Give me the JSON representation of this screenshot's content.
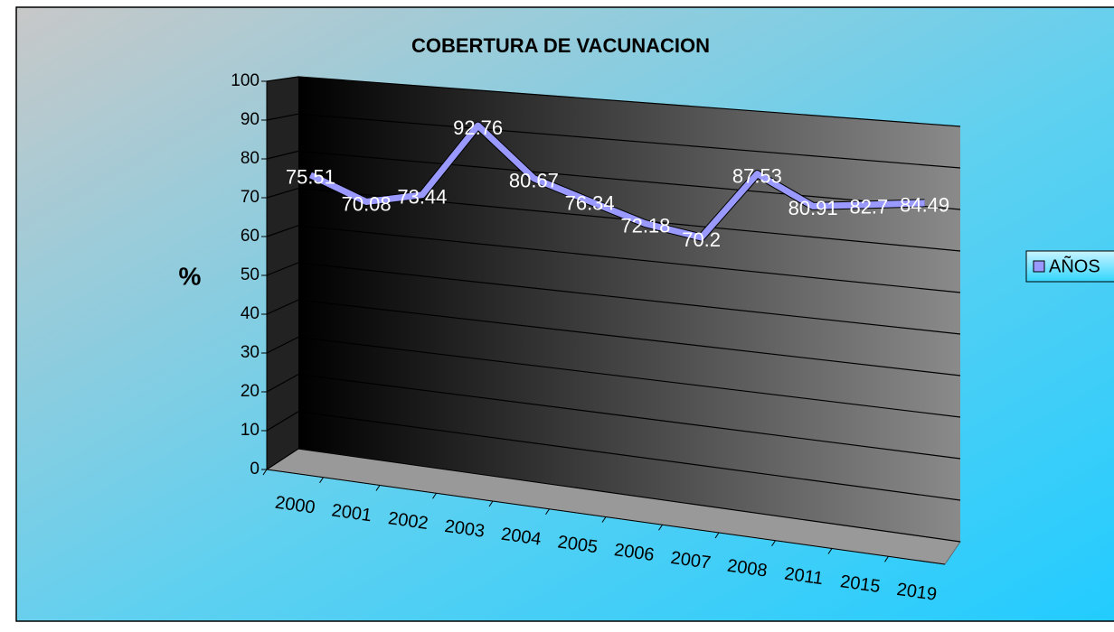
{
  "chart_data": {
    "type": "line",
    "title": "COBERTURA DE VACUNACION",
    "y_label": "%",
    "categories": [
      "2000",
      "2001",
      "2002",
      "2003",
      "2004",
      "2005",
      "2006",
      "2007",
      "2008",
      "2011",
      "2015",
      "2019"
    ],
    "series": [
      {
        "name": "AÑOS",
        "color": "#9999ff",
        "values": [
          75.51,
          70.08,
          73.44,
          92.76,
          80.67,
          76.34,
          72.18,
          70.2,
          87.53,
          80.91,
          82.7,
          84.49
        ]
      }
    ],
    "ylim": [
      0,
      100
    ],
    "yticks": [
      0,
      10,
      20,
      30,
      40,
      50,
      60,
      70,
      80,
      90,
      100
    ],
    "grid": true,
    "legend": "right"
  }
}
